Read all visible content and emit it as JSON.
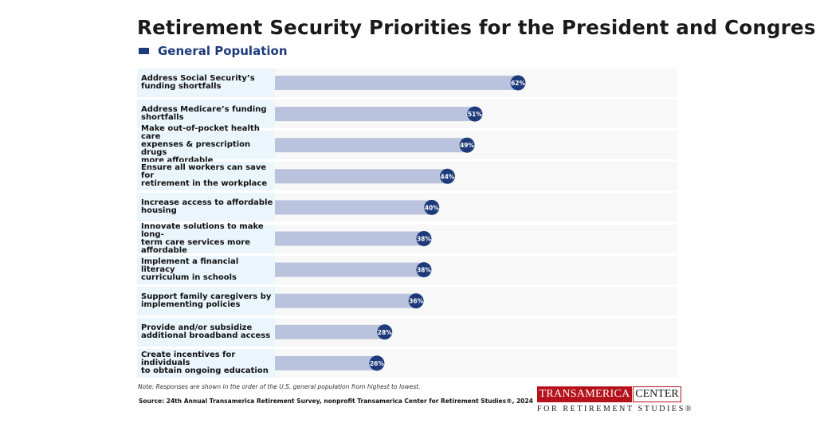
{
  "title": "Retirement Security Priorities for the President and Congress",
  "legend": {
    "label": "General Population",
    "color": "#1e3a7b"
  },
  "colors": {
    "bar": "#bac3dd",
    "badge": "#1e3a7b",
    "label_bg": "#eaf6fb",
    "row_bg": "#f8f8f8"
  },
  "chart_data": {
    "type": "bar",
    "orientation": "horizontal",
    "unit": "%",
    "xlim": [
      0,
      100
    ],
    "grid": false,
    "legend_position": "top-left",
    "categories": [
      [
        "Address Social Security’s",
        "funding shortfalls"
      ],
      [
        "Address Medicare’s funding",
        "shortfalls"
      ],
      [
        "Make out-of-pocket health care",
        "expenses & prescription drugs",
        "more affordable"
      ],
      [
        "Ensure all workers can save for",
        "retirement in the workplace"
      ],
      [
        "Increase access to affordable",
        "housing"
      ],
      [
        "Innovate solutions to make long-",
        "term care services more affordable"
      ],
      [
        "Implement a financial literacy",
        "curriculum in schools"
      ],
      [
        "Support family caregivers by",
        "implementing policies"
      ],
      [
        "Provide and/or subsidize",
        "additional broadband access"
      ],
      [
        "Create incentives for individuals",
        "to obtain ongoing education"
      ]
    ],
    "series": [
      {
        "name": "General Population",
        "values": [
          62,
          51,
          49,
          44,
          40,
          38,
          38,
          36,
          28,
          26
        ]
      }
    ],
    "data_labels": [
      "62%",
      "51%",
      "49%",
      "44%",
      "40%",
      "38%",
      "38%",
      "36%",
      "28%",
      "26%"
    ]
  },
  "note": "Note: Responses are shown in the order of the U.S. general population from highest to lowest.",
  "source": "Source: 24th Annual Transamerica Retirement Survey, nonprofit Transamerica Center for Retirement Studies®, 2024",
  "logo": {
    "word1": "TRANSAMERICA",
    "word2": "CENTER",
    "line2": "FOR RETIREMENT STUDIES®"
  }
}
